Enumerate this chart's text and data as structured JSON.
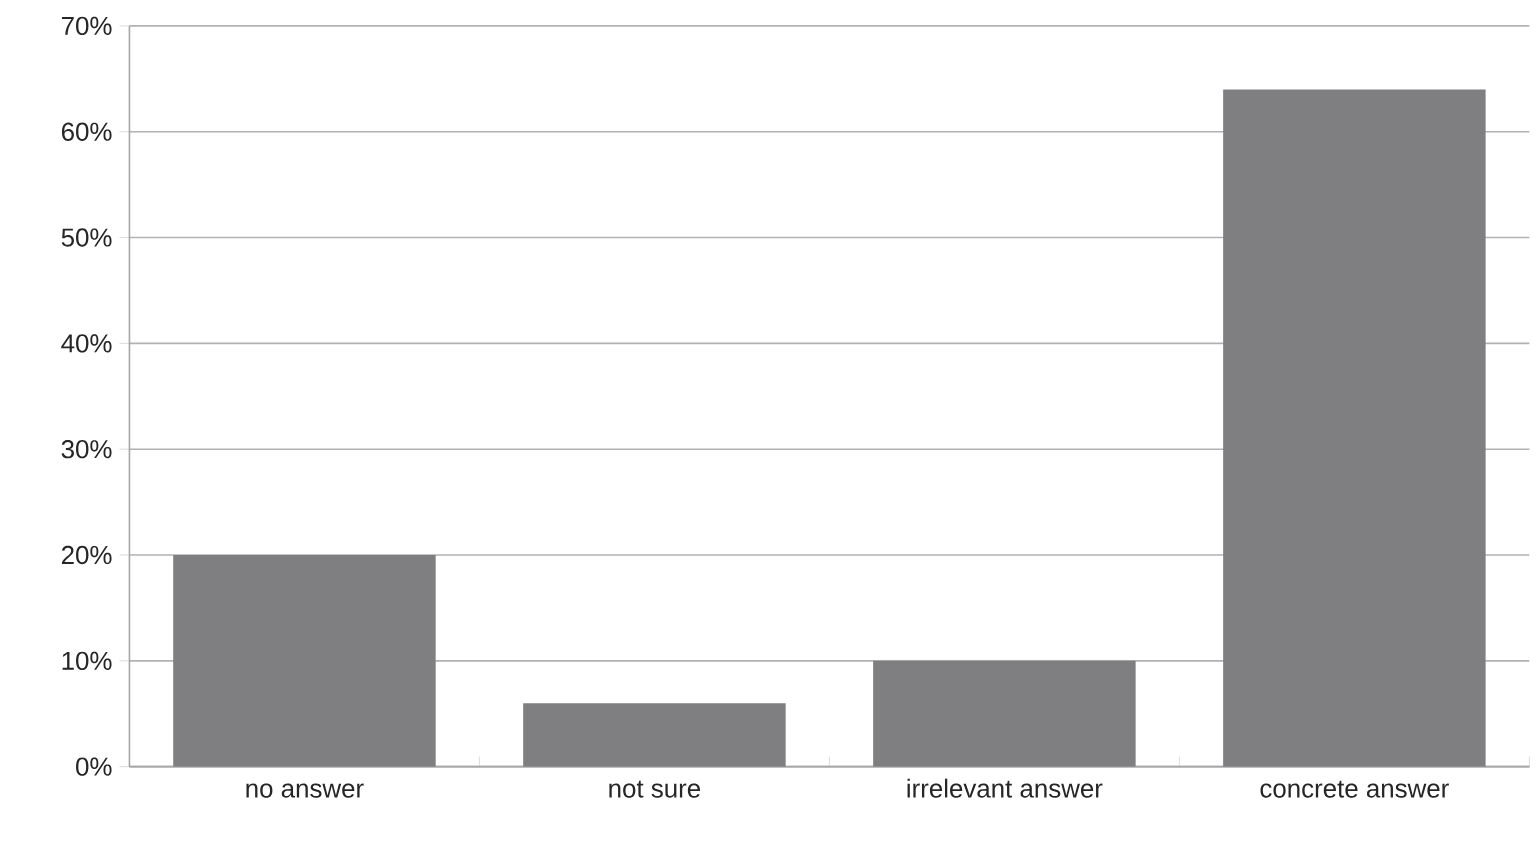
{
  "chart_data": {
    "type": "bar",
    "categories": [
      "no answer",
      "not sure",
      "irrelevant answer",
      "concrete answer"
    ],
    "values": [
      20,
      6,
      10,
      64
    ],
    "color": "#7f7f82",
    "ylim": [
      0,
      70
    ],
    "yticks": [
      {
        "value": 0,
        "label": "0%"
      },
      {
        "value": 10,
        "label": "10%"
      },
      {
        "value": 20,
        "label": "20%"
      },
      {
        "value": 30,
        "label": "30%"
      },
      {
        "value": 40,
        "label": "40%"
      },
      {
        "value": 50,
        "label": "50%"
      },
      {
        "value": 60,
        "label": "60%"
      },
      {
        "value": 70,
        "label": "70%"
      }
    ],
    "grid": "y"
  }
}
